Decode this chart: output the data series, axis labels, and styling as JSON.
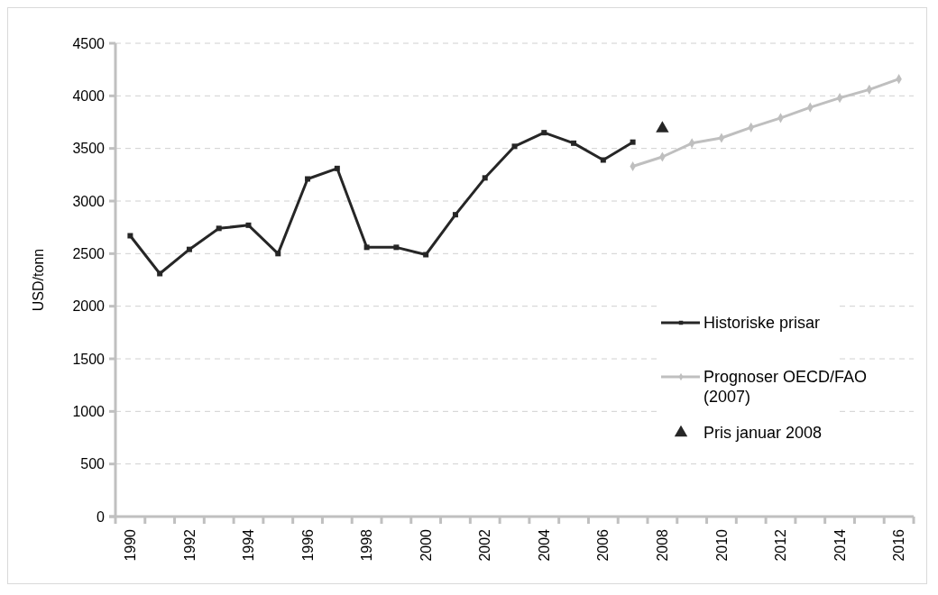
{
  "chart_data": {
    "type": "line",
    "ylabel": "USD/tonn",
    "categories": [
      "1990",
      null,
      "1992",
      null,
      "1994",
      null,
      "1996",
      null,
      "1998",
      null,
      "2000",
      null,
      "2002",
      null,
      "2004",
      null,
      "2006",
      null,
      "2008",
      null,
      "2010",
      null,
      "2012",
      null,
      "2014",
      null,
      "2016"
    ],
    "series": [
      {
        "name": "Historiske prisar",
        "color": "#262626",
        "marker": "square",
        "values": [
          2670,
          2310,
          2540,
          2740,
          2770,
          2500,
          3210,
          3310,
          2560,
          2560,
          2490,
          2870,
          3220,
          3520,
          3650,
          3550,
          3390,
          3560,
          null,
          null,
          null,
          null,
          null,
          null,
          null,
          null,
          null
        ]
      },
      {
        "name": "Prognoser OECD/FAO (2007)",
        "color": "#bfbfbf",
        "marker": "diamond",
        "values": [
          null,
          null,
          null,
          null,
          null,
          null,
          null,
          null,
          null,
          null,
          null,
          null,
          null,
          null,
          null,
          null,
          null,
          3330,
          3420,
          3550,
          3600,
          3700,
          3790,
          3890,
          3980,
          4060,
          4160
        ]
      },
      {
        "name": "Pris januar 2008",
        "type": "scatter",
        "color": "#262626",
        "marker": "triangle",
        "values": [
          null,
          null,
          null,
          null,
          null,
          null,
          null,
          null,
          null,
          null,
          null,
          null,
          null,
          null,
          null,
          null,
          null,
          null,
          3690,
          null,
          null,
          null,
          null,
          null,
          null,
          null,
          null
        ]
      }
    ],
    "ylim": [
      0,
      4500
    ],
    "yticks": [
      0,
      500,
      1000,
      1500,
      2000,
      2500,
      3000,
      3500,
      4000,
      4500
    ],
    "grid": "y",
    "legend": "right",
    "line_style": "solid"
  }
}
